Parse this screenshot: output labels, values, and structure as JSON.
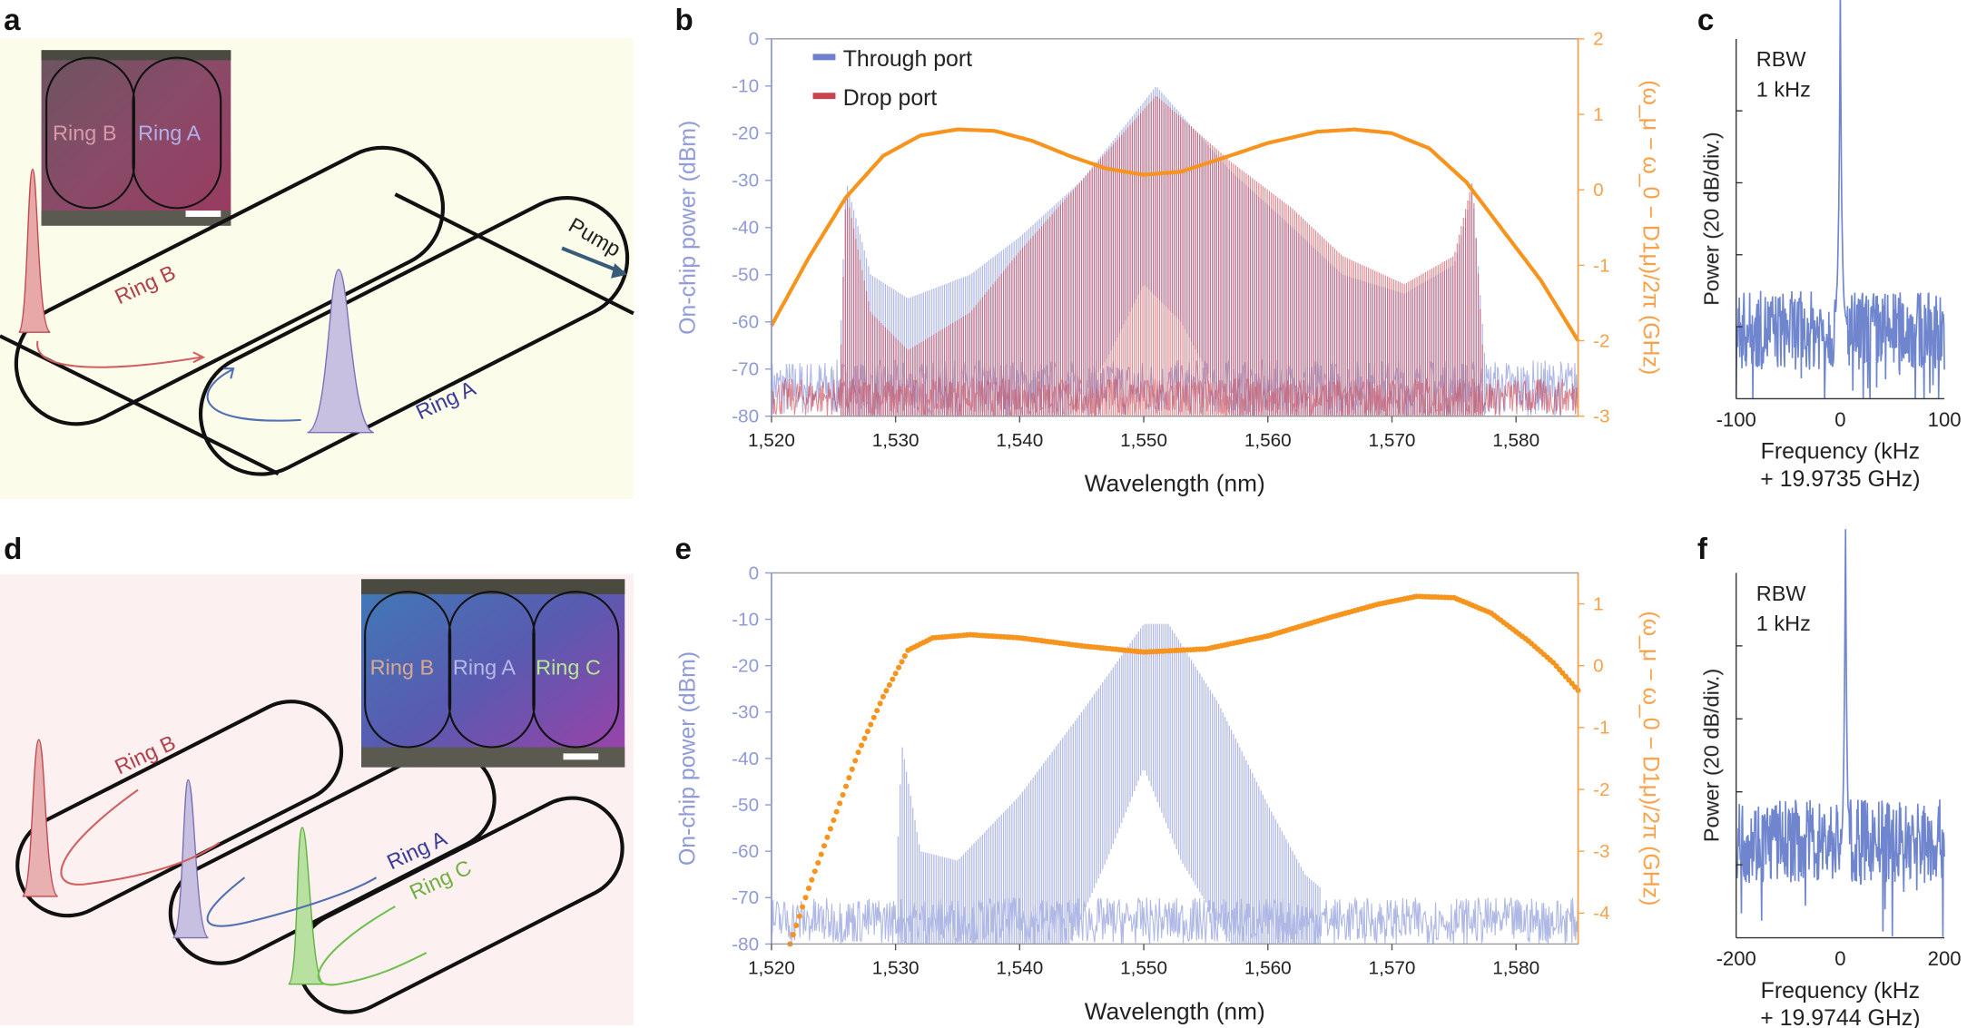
{
  "panel_labels": [
    "a",
    "b",
    "c",
    "d",
    "e",
    "f"
  ],
  "diagram_a": {
    "inset_labels": [
      "Ring B",
      "Ring A"
    ],
    "ring_labels": [
      "Ring B",
      "Ring A"
    ],
    "pump_label": "Pump",
    "background": "#fbfcea"
  },
  "diagram_d": {
    "inset_labels": [
      "Ring B",
      "Ring A",
      "Ring C"
    ],
    "ring_labels": [
      "Ring B",
      "Ring A",
      "Ring C"
    ],
    "background": "#fdf0f0"
  },
  "colors": {
    "through": "#6f7fcf",
    "drop": "#c9434f",
    "dispersion": "#f7941d",
    "left_axis": "#8f9ad6",
    "right_axis": "#f7a24a",
    "spectrum": "#6f86cf"
  },
  "chart_data": [
    {
      "id": "b",
      "type": "line",
      "xlabel": "Wavelength (nm)",
      "ylabel": "On-chip power (dBm)",
      "ylabel_right": "(ω_μ − ω_0 − D1μ)/2π (GHz)",
      "xlim": [
        1520,
        1585
      ],
      "ylim": [
        -80,
        0
      ],
      "ylim_right": [
        -3,
        2
      ],
      "xticks": [
        "1,520",
        "1,530",
        "1,540",
        "1,550",
        "1,560",
        "1,570",
        "1,580"
      ],
      "xtick_values": [
        1520,
        1530,
        1540,
        1550,
        1560,
        1570,
        1580
      ],
      "yticks": [
        0,
        -10,
        -20,
        -30,
        -40,
        -50,
        -60,
        -70,
        -80
      ],
      "yticks_right": [
        2,
        1,
        0,
        -1,
        -2,
        -3
      ],
      "legend": [
        "Through port",
        "Drop port"
      ],
      "legend_position": "top-left",
      "series": [
        {
          "name": "Through port",
          "comb_envelope": [
            [
              1520,
              -70
            ],
            [
              1525.5,
              -68
            ],
            [
              1526,
              -30
            ],
            [
              1528,
              -50
            ],
            [
              1531,
              -55
            ],
            [
              1536,
              -50
            ],
            [
              1540,
              -42
            ],
            [
              1545,
              -30
            ],
            [
              1551,
              -10
            ],
            [
              1557,
              -28
            ],
            [
              1562,
              -40
            ],
            [
              1566,
              -50
            ],
            [
              1571,
              -54
            ],
            [
              1575,
              -48
            ],
            [
              1576.5,
              -32
            ],
            [
              1577.5,
              -68
            ],
            [
              1585,
              -70
            ]
          ],
          "comb_floor": [
            [
              1544,
              -80
            ],
            [
              1547,
              -68
            ],
            [
              1550,
              -52
            ],
            [
              1553,
              -60
            ],
            [
              1557,
              -80
            ]
          ],
          "noise_range": [
            -80,
            -68
          ]
        },
        {
          "name": "Drop port",
          "comb_envelope": [
            [
              1520,
              -76
            ],
            [
              1525.5,
              -74
            ],
            [
              1526,
              -32
            ],
            [
              1528,
              -58
            ],
            [
              1531,
              -66
            ],
            [
              1536,
              -58
            ],
            [
              1540,
              -45
            ],
            [
              1545,
              -30
            ],
            [
              1551,
              -12
            ],
            [
              1557,
              -26
            ],
            [
              1562,
              -36
            ],
            [
              1566,
              -46
            ],
            [
              1571,
              -52
            ],
            [
              1575,
              -46
            ],
            [
              1576.5,
              -30
            ],
            [
              1577.5,
              -74
            ],
            [
              1585,
              -76
            ]
          ],
          "comb_floor": [
            [
              1544,
              -80
            ],
            [
              1545,
              -80
            ],
            [
              1556,
              -80
            ]
          ],
          "noise_range": [
            -80,
            -72
          ]
        },
        {
          "name": "Dispersion",
          "axis": "right",
          "points": [
            [
              1520,
              -1.8
            ],
            [
              1523,
              -0.9
            ],
            [
              1526,
              -0.1
            ],
            [
              1529,
              0.45
            ],
            [
              1532,
              0.72
            ],
            [
              1535,
              0.8
            ],
            [
              1538,
              0.78
            ],
            [
              1541,
              0.65
            ],
            [
              1544,
              0.45
            ],
            [
              1547,
              0.28
            ],
            [
              1550,
              0.2
            ],
            [
              1553,
              0.24
            ],
            [
              1556,
              0.4
            ],
            [
              1560,
              0.62
            ],
            [
              1564,
              0.77
            ],
            [
              1567,
              0.8
            ],
            [
              1570,
              0.75
            ],
            [
              1573,
              0.55
            ],
            [
              1576,
              0.1
            ],
            [
              1579,
              -0.55
            ],
            [
              1582,
              -1.2
            ],
            [
              1585,
              -2.0
            ]
          ]
        }
      ]
    },
    {
      "id": "c",
      "type": "line",
      "annotation": [
        "RBW",
        "1 kHz"
      ],
      "xlabel": [
        "Frequency (kHz",
        "+ 19.9735 GHz)"
      ],
      "ylabel": "Power (20 dB/div.)",
      "xlim": [
        -100,
        100
      ],
      "xticks": [
        -100,
        0,
        100
      ],
      "ylim": [
        0,
        100
      ],
      "peak_khz": 0,
      "peak_level": 95,
      "noise_level": [
        8,
        30
      ]
    },
    {
      "id": "e",
      "type": "line",
      "xlabel": "Wavelength (nm)",
      "ylabel": "On-chip power (dBm)",
      "ylabel_right": "(ω_μ − ω_0 − D1μ)/2π (GHz)",
      "xlim": [
        1520,
        1585
      ],
      "ylim": [
        -80,
        0
      ],
      "ylim_right": [
        -4.5,
        1.5
      ],
      "xticks": [
        "1,520",
        "1,530",
        "1,540",
        "1,550",
        "1,560",
        "1,570",
        "1,580"
      ],
      "xtick_values": [
        1520,
        1530,
        1540,
        1550,
        1560,
        1570,
        1580
      ],
      "yticks": [
        0,
        -10,
        -20,
        -30,
        -40,
        -50,
        -60,
        -70,
        -80
      ],
      "yticks_right": [
        1,
        0,
        -1,
        -2,
        -3,
        -4
      ],
      "series": [
        {
          "name": "Through port",
          "comb_envelope": [
            [
              1520,
              -72
            ],
            [
              1530,
              -70
            ],
            [
              1530.5,
              -37
            ],
            [
              1532,
              -60
            ],
            [
              1535,
              -62
            ],
            [
              1540,
              -48
            ],
            [
              1545,
              -30
            ],
            [
              1550,
              -11
            ],
            [
              1552,
              -11
            ],
            [
              1556,
              -28
            ],
            [
              1560,
              -50
            ],
            [
              1563,
              -65
            ],
            [
              1566,
              -72
            ],
            [
              1585,
              -72
            ]
          ],
          "comb_floor": [
            [
              1544,
              -80
            ],
            [
              1547,
              -62
            ],
            [
              1550,
              -42
            ],
            [
              1553,
              -62
            ],
            [
              1557,
              -80
            ]
          ],
          "noise_range": [
            -80,
            -70
          ]
        },
        {
          "name": "Dispersion",
          "axis": "right",
          "style": "dots",
          "points": [
            [
              1521.5,
              -4.5
            ],
            [
              1523,
              -3.6
            ],
            [
              1525,
              -2.5
            ],
            [
              1527,
              -1.4
            ],
            [
              1529,
              -0.5
            ],
            [
              1531,
              0.25
            ],
            [
              1533,
              0.45
            ],
            [
              1536,
              0.5
            ],
            [
              1540,
              0.45
            ],
            [
              1545,
              0.32
            ],
            [
              1550,
              0.22
            ],
            [
              1555,
              0.27
            ],
            [
              1560,
              0.48
            ],
            [
              1565,
              0.78
            ],
            [
              1569,
              1.0
            ],
            [
              1572,
              1.12
            ],
            [
              1575,
              1.1
            ],
            [
              1578,
              0.85
            ],
            [
              1581,
              0.4
            ],
            [
              1583,
              0.05
            ],
            [
              1585,
              -0.4
            ]
          ]
        }
      ]
    },
    {
      "id": "f",
      "type": "line",
      "annotation": [
        "RBW",
        "1 kHz"
      ],
      "xlabel": [
        "Frequency (kHz",
        "+ 19.9744 GHz)"
      ],
      "ylabel": "Power (20 dB/div.)",
      "xlim": [
        -200,
        200
      ],
      "xticks": [
        -200,
        0,
        200
      ],
      "ylim": [
        0,
        100
      ],
      "peak_khz": 10,
      "peak_level": 92,
      "noise_level": [
        15,
        38
      ]
    }
  ]
}
